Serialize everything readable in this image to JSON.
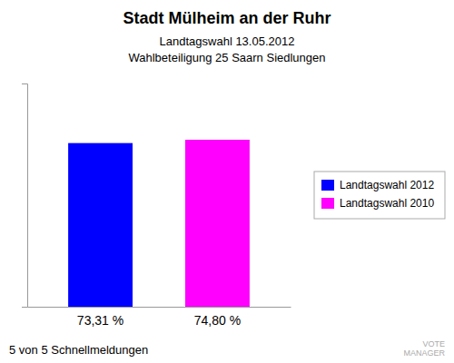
{
  "chart_data": {
    "type": "bar",
    "title": "Stadt Mülheim an der Ruhr",
    "subtitle": [
      "Landtagswahl 13.05.2012",
      "Wahlbeteiligung 25 Saarn Siedlungen"
    ],
    "categories": [
      "Landtagswahl 2012",
      "Landtagswahl 2010"
    ],
    "values": [
      73.31,
      74.8
    ],
    "value_labels": [
      "73,31 %",
      "74,80 %"
    ],
    "colors": [
      "#0000ff",
      "#ff00ff"
    ],
    "ylim": [
      0,
      100
    ],
    "data_labels": true,
    "tick_labels": false,
    "grid": false,
    "legend": "right",
    "annotations": [
      "5 von 5 Schnellmeldungen",
      "VOTE\nMANAGER"
    ]
  }
}
